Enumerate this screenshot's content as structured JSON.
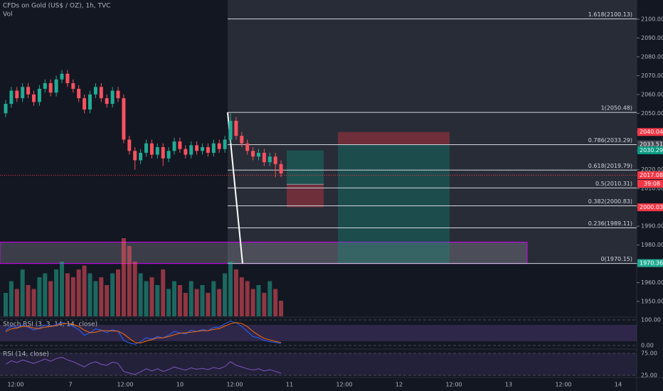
{
  "chart_data": {
    "type": "candlestick",
    "title": "CFDs on Gold (US$ / OZ), 1h, TVC",
    "volume_title": "Vol",
    "ylim": [
      1950,
      2100
    ],
    "yticks": [
      {
        "value": 2100,
        "label": "2100.00"
      },
      {
        "value": 2090,
        "label": "2090.00"
      },
      {
        "value": 2080,
        "label": "2080.00"
      },
      {
        "value": 2070,
        "label": "2070.00"
      },
      {
        "value": 2060,
        "label": "2060.00"
      },
      {
        "value": 2050,
        "label": "2050.00"
      },
      {
        "value": 2040,
        "label": "2040.00"
      },
      {
        "value": 2030,
        "label": "2030.00"
      },
      {
        "value": 2020,
        "label": "2020.00"
      },
      {
        "value": 2010,
        "label": "2010.00"
      },
      {
        "value": 2000,
        "label": "2000.00"
      },
      {
        "value": 1990,
        "label": "1990.00"
      },
      {
        "value": 1980,
        "label": "1980.00"
      },
      {
        "value": 1970,
        "label": "1970.00"
      },
      {
        "value": 1960,
        "label": "1960.00"
      },
      {
        "value": 1950,
        "label": "1950.00"
      }
    ],
    "up_color": "#22ab94",
    "down_color": "#f7525f",
    "ohlc": [
      [
        2050,
        2057,
        2048,
        2055
      ],
      [
        2055,
        2064,
        2053,
        2062
      ],
      [
        2062,
        2064,
        2056,
        2058
      ],
      [
        2058,
        2066,
        2056,
        2064
      ],
      [
        2064,
        2066,
        2058,
        2060
      ],
      [
        2060,
        2062,
        2054,
        2056
      ],
      [
        2056,
        2065,
        2054,
        2063
      ],
      [
        2063,
        2068,
        2061,
        2066
      ],
      [
        2066,
        2068,
        2059,
        2061
      ],
      [
        2061,
        2070,
        2059,
        2068
      ],
      [
        2068,
        2073,
        2066,
        2071
      ],
      [
        2071,
        2073,
        2064,
        2066
      ],
      [
        2066,
        2068,
        2061,
        2063
      ],
      [
        2063,
        2065,
        2056,
        2058
      ],
      [
        2058,
        2060,
        2050,
        2052
      ],
      [
        2052,
        2062,
        2050,
        2060
      ],
      [
        2060,
        2066,
        2058,
        2064
      ],
      [
        2064,
        2066,
        2056,
        2058
      ],
      [
        2058,
        2060,
        2053,
        2055
      ],
      [
        2055,
        2064,
        2053,
        2062
      ],
      [
        2062,
        2064,
        2056,
        2058
      ],
      [
        2058,
        2060,
        2034,
        2036
      ],
      [
        2036,
        2038,
        2028,
        2030
      ],
      [
        2030,
        2032,
        2020,
        2025
      ],
      [
        2025,
        2031,
        2023,
        2029
      ],
      [
        2029,
        2036,
        2027,
        2034
      ],
      [
        2034,
        2036,
        2026,
        2028
      ],
      [
        2028,
        2034,
        2026,
        2032
      ],
      [
        2032,
        2034,
        2022,
        2026
      ],
      [
        2026,
        2032,
        2024,
        2030
      ],
      [
        2030,
        2037,
        2028,
        2035
      ],
      [
        2035,
        2037,
        2029,
        2031
      ],
      [
        2031,
        2033,
        2026,
        2028
      ],
      [
        2028,
        2035,
        2026,
        2033
      ],
      [
        2033,
        2035,
        2028,
        2030
      ],
      [
        2030,
        2034,
        2028,
        2032
      ],
      [
        2032,
        2034,
        2027,
        2029
      ],
      [
        2029,
        2036,
        2027,
        2034
      ],
      [
        2034,
        2036,
        2029,
        2031
      ],
      [
        2031,
        2038,
        2029,
        2036
      ],
      [
        2036,
        2050,
        2034,
        2046
      ],
      [
        2046,
        2048,
        2036,
        2038
      ],
      [
        2038,
        2040,
        2032,
        2034
      ],
      [
        2034,
        2036,
        2028,
        2030
      ],
      [
        2030,
        2032,
        2025,
        2027
      ],
      [
        2027,
        2031,
        2025,
        2029
      ],
      [
        2029,
        2031,
        2022,
        2024
      ],
      [
        2024,
        2029,
        2022,
        2027
      ],
      [
        2027,
        2029,
        2016,
        2023
      ],
      [
        2023,
        2025,
        2016,
        2018
      ]
    ],
    "volume": [
      30,
      45,
      35,
      60,
      40,
      35,
      50,
      55,
      45,
      60,
      70,
      55,
      50,
      60,
      65,
      55,
      45,
      50,
      40,
      55,
      60,
      100,
      90,
      70,
      55,
      45,
      50,
      40,
      60,
      35,
      45,
      40,
      30,
      45,
      35,
      40,
      30,
      45,
      35,
      55,
      70,
      60,
      50,
      45,
      35,
      40,
      30,
      45,
      35,
      20
    ],
    "x_labels": [
      "12:00",
      "7",
      "12:00",
      "10",
      "12:00",
      "11",
      "12:00",
      "12",
      "12:00",
      "13",
      "12:00",
      "14"
    ],
    "fib_levels": [
      {
        "label": "1.618(2100.13)",
        "price": 2100.13
      },
      {
        "label": "1(2050.48)",
        "price": 2050.48
      },
      {
        "label": "0.786(2033.29)",
        "price": 2033.29
      },
      {
        "label": "0.618(2019.79)",
        "price": 2019.79
      },
      {
        "label": "0.5(2010.31)",
        "price": 2010.31
      },
      {
        "label": "0.382(2000.83)",
        "price": 2000.83
      },
      {
        "label": "0.236(1989.11)",
        "price": 1989.11
      },
      {
        "label": "0(1970.15)",
        "price": 1970.15
      }
    ],
    "price_labels": [
      {
        "value": 2040.04,
        "color": "#f23645"
      },
      {
        "value": 2033.51,
        "color": "#434651"
      },
      {
        "value": 2030.29,
        "color": "#089981"
      },
      {
        "value": 2017.08,
        "color": "#f23645"
      },
      {
        "value": 2012.25,
        "color": "#434651"
      },
      {
        "value": 2000.03,
        "color": "#f23645"
      },
      {
        "value": 1970.36,
        "color": "#22ab94"
      }
    ],
    "countdown": "39:08",
    "zone_top": 1981.5,
    "stoch": {
      "title": "Stoch RSI (3, 3, 14, 14, close)",
      "ylim": [
        0,
        100
      ],
      "yticks": [
        {
          "value": 100,
          "label": "100.00"
        },
        {
          "value": 0,
          "label": "0.00"
        }
      ],
      "series": [
        {
          "color": "#2962ff",
          "values": [
            60,
            75,
            70,
            80,
            72,
            60,
            68,
            80,
            74,
            82,
            90,
            85,
            75,
            62,
            40,
            50,
            65,
            60,
            50,
            62,
            55,
            20,
            10,
            5,
            15,
            30,
            25,
            35,
            30,
            40,
            55,
            50,
            45,
            60,
            55,
            62,
            58,
            70,
            72,
            85,
            95,
            88,
            75,
            55,
            35,
            30,
            20,
            15,
            12,
            8
          ]
        },
        {
          "color": "#ff6d00",
          "values": [
            55,
            65,
            68,
            75,
            74,
            68,
            66,
            72,
            74,
            78,
            84,
            86,
            83,
            74,
            60,
            50,
            52,
            58,
            58,
            57,
            56,
            45,
            28,
            12,
            10,
            17,
            23,
            30,
            30,
            35,
            42,
            48,
            50,
            52,
            55,
            58,
            58,
            63,
            66,
            76,
            85,
            90,
            86,
            74,
            55,
            40,
            28,
            22,
            16,
            12
          ]
        }
      ]
    },
    "rsi": {
      "title": "RSI (14, close)",
      "ylim": [
        25,
        75
      ],
      "yticks": [
        {
          "value": 75,
          "label": "75.00"
        },
        {
          "value": 25,
          "label": "25.00"
        }
      ],
      "series": [
        {
          "color": "#7e57c2",
          "values": [
            50,
            58,
            54,
            60,
            56,
            52,
            57,
            62,
            57,
            63,
            66,
            60,
            56,
            50,
            44,
            52,
            56,
            50,
            48,
            55,
            52,
            34,
            30,
            27,
            33,
            40,
            35,
            40,
            34,
            38,
            44,
            40,
            37,
            42,
            39,
            41,
            38,
            43,
            40,
            45,
            56,
            48,
            44,
            40,
            37,
            40,
            35,
            38,
            34,
            30
          ]
        }
      ]
    }
  }
}
